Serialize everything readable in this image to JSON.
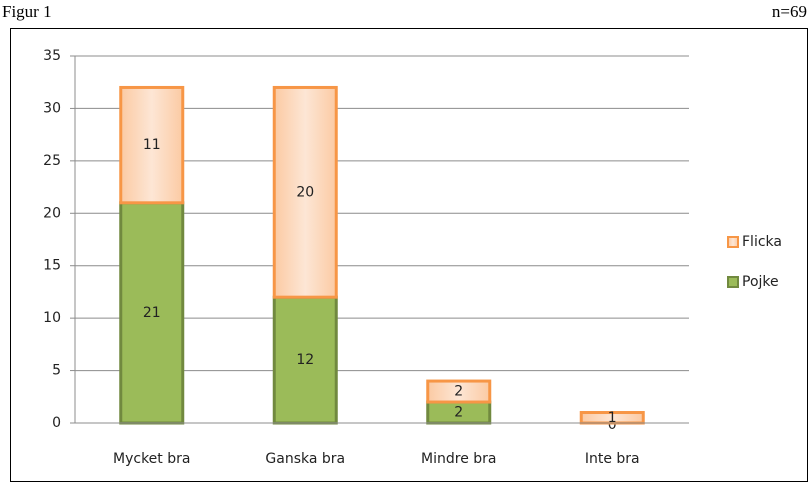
{
  "chart_data": {
    "type": "stacked_bar",
    "title": "Figur 1",
    "annotation": "n=69",
    "categories": [
      "Mycket bra",
      "Ganska bra",
      "Mindre bra",
      "Inte bra"
    ],
    "series": [
      {
        "name": "Pojke",
        "color": "#9bbb59",
        "values": [
          21,
          12,
          2,
          0
        ]
      },
      {
        "name": "Flicka",
        "color": "#f79646",
        "values": [
          11,
          20,
          2,
          1
        ]
      }
    ],
    "ylim": [
      0,
      35
    ],
    "yticks": [
      0,
      5,
      10,
      15,
      20,
      25,
      30,
      35
    ],
    "grid": true,
    "legend": "right"
  }
}
